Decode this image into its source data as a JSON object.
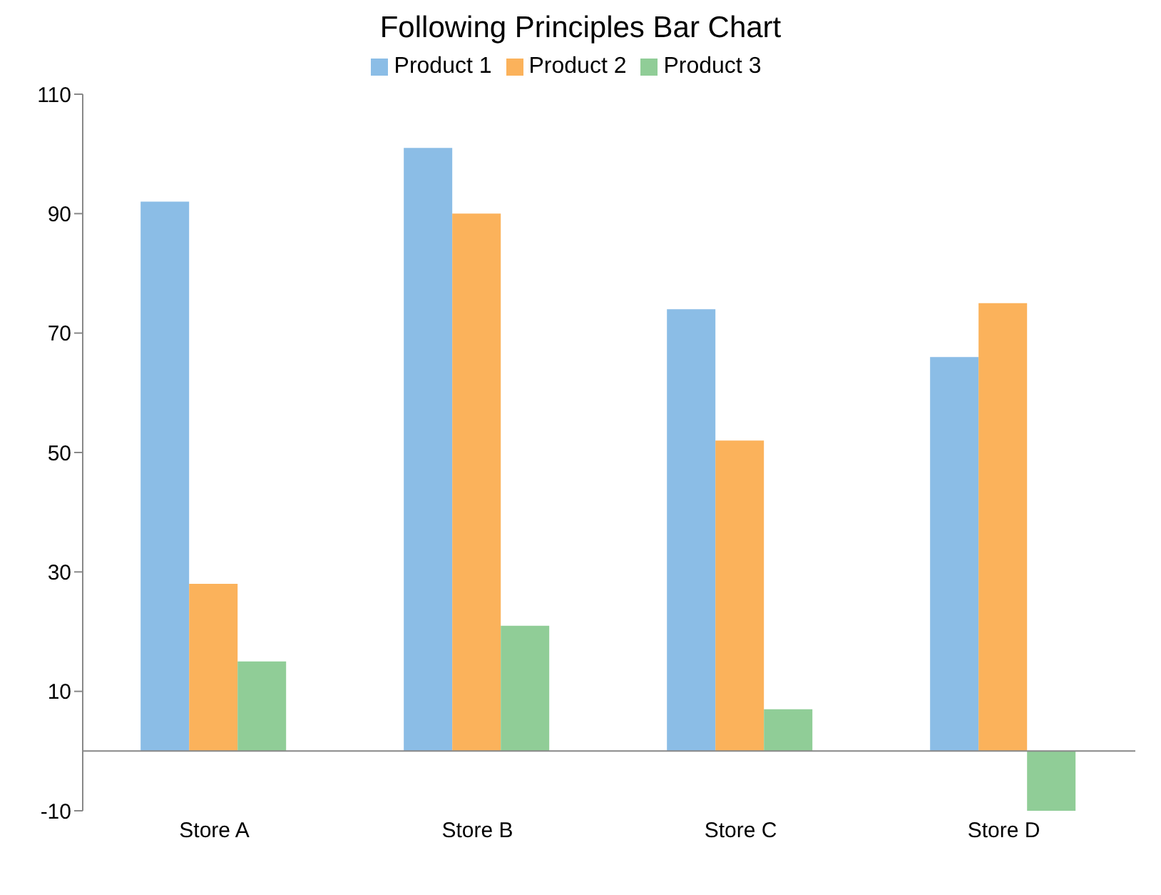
{
  "chart_data": {
    "type": "bar",
    "title": "Following Principles Bar Chart",
    "categories": [
      "Store A",
      "Store B",
      "Store C",
      "Store D"
    ],
    "series": [
      {
        "name": "Product 1",
        "color": "#8bbde6",
        "values": [
          92,
          101,
          74,
          66
        ]
      },
      {
        "name": "Product 2",
        "color": "#fbb25b",
        "values": [
          28,
          90,
          52,
          75
        ]
      },
      {
        "name": "Product 3",
        "color": "#90cd97",
        "values": [
          15,
          21,
          7,
          -10
        ]
      }
    ],
    "ylim": [
      -10,
      110
    ],
    "yticks": [
      -10,
      10,
      30,
      50,
      70,
      90,
      110
    ],
    "grid": false,
    "legend": "top"
  }
}
